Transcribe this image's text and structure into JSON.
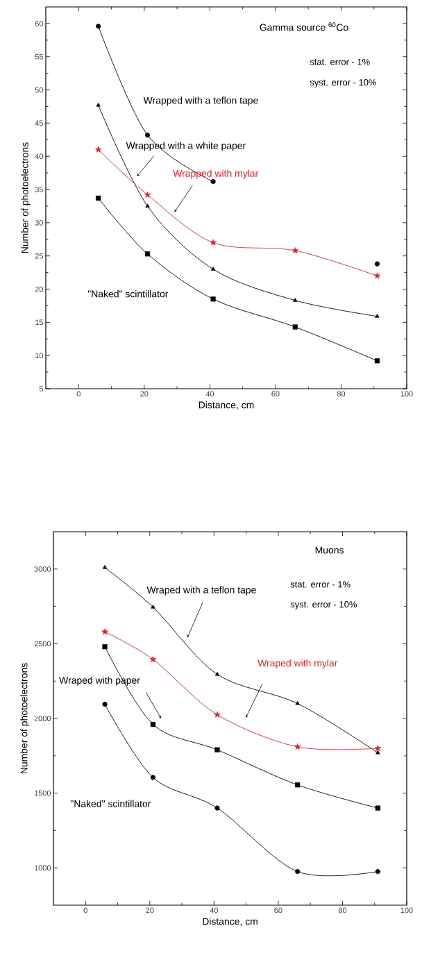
{
  "chart_data": [
    {
      "type": "line",
      "title": "Gamma source $^{60}$Co",
      "xlabel": "Distance, cm",
      "ylabel": "Number of photoelectrons",
      "annotations": [
        "stat. error - 1%",
        "syst. error - 10%"
      ],
      "x": [
        6,
        21,
        41,
        66,
        91
      ],
      "xlim": [
        -10,
        100
      ],
      "xticks": [
        0,
        20,
        40,
        60,
        80,
        100
      ],
      "ylim": [
        5,
        62.5
      ],
      "yticks": [
        5,
        10,
        15,
        20,
        25,
        30,
        35,
        40,
        45,
        50,
        55,
        60
      ],
      "grid": false,
      "line_style": "solid",
      "series": [
        {
          "name": "Wrapped with a teflon tape",
          "color": "#000000",
          "marker": "circle",
          "values": [
            59.6,
            43.2,
            36.2,
            null,
            23.8
          ]
        },
        {
          "name": "Wrapped with a white paper",
          "color": "#000000",
          "marker": "triangle",
          "values": [
            47.7,
            32.5,
            23,
            18.3,
            15.9
          ]
        },
        {
          "name": "Wrapped with mylar",
          "color": "#e8202a",
          "marker": "star",
          "values": [
            41,
            34.2,
            27,
            25.8,
            22
          ]
        },
        {
          "name": "\"Naked\" scintillator",
          "color": "#000000",
          "marker": "square",
          "values": [
            33.7,
            25.3,
            18.5,
            14.3,
            9.2
          ]
        }
      ]
    },
    {
      "type": "line",
      "title": "Muons",
      "xlabel": "Distance, cm",
      "ylabel": "Number of photoelectrons",
      "annotations": [
        "stat. error - 1%",
        "syst. error - 10%"
      ],
      "x": [
        6,
        21,
        41,
        66,
        91
      ],
      "xlim": [
        -10,
        100
      ],
      "xticks": [
        0,
        20,
        40,
        60,
        80,
        100
      ],
      "ylim": [
        750,
        3250
      ],
      "yticks": [
        1000,
        1500,
        2000,
        2500,
        3000
      ],
      "grid": false,
      "line_style": "solid",
      "series": [
        {
          "name": "Wraped with a teflon tape",
          "color": "#000000",
          "marker": "triangle",
          "values": [
            3010,
            2745,
            2295,
            2100,
            1770
          ]
        },
        {
          "name": "Wraped with mylar",
          "color": "#e8202a",
          "marker": "star",
          "values": [
            2580,
            2395,
            2025,
            1810,
            1800
          ]
        },
        {
          "name": "Wraped with paper",
          "color": "#000000",
          "marker": "square",
          "values": [
            2480,
            1960,
            1790,
            1555,
            1400
          ]
        },
        {
          "name": "\"Naked\" scintillator",
          "color": "#000000",
          "marker": "circle",
          "values": [
            2095,
            1605,
            1400,
            975,
            975
          ]
        }
      ]
    }
  ]
}
